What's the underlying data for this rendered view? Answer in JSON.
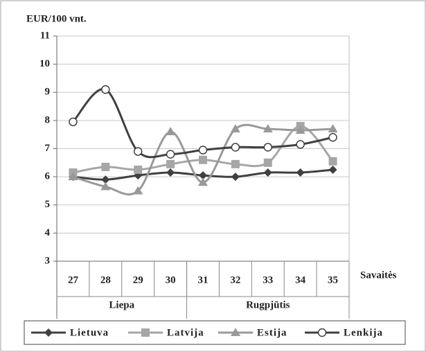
{
  "chart_data": {
    "type": "line",
    "y_axis_label": "EUR/100 vnt.",
    "x_axis_label": "Savaitės",
    "categories": [
      "27",
      "28",
      "29",
      "30",
      "31",
      "32",
      "33",
      "34",
      "35"
    ],
    "category_groups": [
      {
        "label": "Liepa",
        "count": 4
      },
      {
        "label": "Rugpjūtis",
        "count": 5
      }
    ],
    "series": [
      {
        "name": "Lietuva",
        "color": "#404040",
        "marker": "diamond",
        "values": [
          6.0,
          5.9,
          6.05,
          6.15,
          6.05,
          6.0,
          6.15,
          6.15,
          6.25
        ]
      },
      {
        "name": "Latvija",
        "color": "#a6a6a6",
        "marker": "square",
        "values": [
          6.15,
          6.35,
          6.25,
          6.45,
          6.6,
          6.45,
          6.5,
          7.8,
          6.55
        ]
      },
      {
        "name": "Estija",
        "color": "#999999",
        "marker": "triangle",
        "values": [
          6.0,
          5.65,
          5.5,
          7.6,
          5.8,
          7.7,
          7.7,
          7.65,
          7.7
        ]
      },
      {
        "name": "Lenkija",
        "color": "#404040",
        "marker": "circle",
        "values": [
          7.95,
          9.1,
          6.9,
          6.8,
          6.95,
          7.05,
          7.05,
          7.15,
          7.4
        ]
      }
    ],
    "ylim": [
      3,
      11
    ],
    "yticks": [
      3,
      4,
      5,
      6,
      7,
      8,
      9,
      10,
      11
    ],
    "grid": true,
    "smooth": true,
    "legend": "bottom"
  }
}
